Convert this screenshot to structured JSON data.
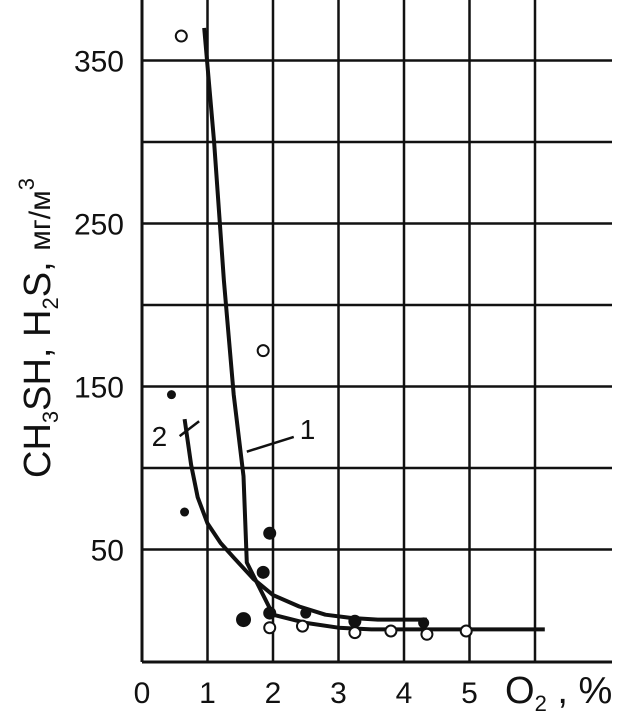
{
  "chart_data": {
    "type": "line",
    "xlabel": {
      "main": "O",
      "sub": "2",
      "rest": " , %"
    },
    "ylabel": {
      "p1": "CH",
      "s1": "3",
      "p2": "SH, H",
      "s2": "2",
      "p3": "S, ",
      "unit": "мг/м",
      "sup": "3"
    },
    "x_ticks": [
      "0",
      "1",
      "2",
      "3",
      "4",
      "5"
    ],
    "y_ticks": [
      {
        "value": 50,
        "label": "50"
      },
      {
        "value": 150,
        "label": "150"
      },
      {
        "value": 250,
        "label": "250"
      },
      {
        "value": 350,
        "label": "350"
      }
    ],
    "xlim": [
      0,
      7.1
    ],
    "ylim": [
      0,
      395
    ],
    "grid_x": [
      1,
      2,
      3,
      4,
      5,
      6
    ],
    "grid_y": [
      50,
      100,
      150,
      200,
      250,
      300,
      350
    ],
    "series": [
      {
        "name": "1",
        "points": [
          [
            0.95,
            370
          ],
          [
            1.1,
            300
          ],
          [
            1.25,
            215
          ],
          [
            1.4,
            145
          ],
          [
            1.55,
            95
          ],
          [
            1.6,
            42
          ],
          [
            2.0,
            10
          ],
          [
            2.5,
            5
          ],
          [
            3.0,
            2
          ],
          [
            3.5,
            1
          ],
          [
            4.0,
            1
          ],
          [
            5.0,
            1
          ],
          [
            6.15,
            1
          ]
        ]
      },
      {
        "name": "2",
        "points": [
          [
            0.65,
            130
          ],
          [
            0.75,
            102
          ],
          [
            0.85,
            82
          ],
          [
            1.0,
            66
          ],
          [
            1.2,
            54
          ],
          [
            1.4,
            45
          ],
          [
            1.7,
            32
          ],
          [
            2.0,
            22
          ],
          [
            2.4,
            15
          ],
          [
            2.8,
            10
          ],
          [
            3.2,
            8
          ],
          [
            3.6,
            7
          ],
          [
            4.35,
            7
          ]
        ]
      }
    ],
    "series_labels": [
      {
        "name": "1",
        "text": "1",
        "anchor": [
          1.6,
          110
        ],
        "label_pos": [
          2.5,
          124
        ]
      },
      {
        "name": "2",
        "text": "2",
        "anchor": [
          0.75,
          125
        ],
        "label_pos": [
          0.3,
          122
        ]
      }
    ],
    "points_open": [
      [
        0.6,
        365
      ],
      [
        1.85,
        172
      ],
      [
        1.95,
        2
      ],
      [
        2.45,
        3
      ],
      [
        3.25,
        -1
      ],
      [
        3.8,
        0
      ],
      [
        4.35,
        -2
      ],
      [
        4.95,
        0
      ]
    ],
    "points_filled": [
      {
        "x": 0.45,
        "y": 145,
        "r": 4
      },
      {
        "x": 0.65,
        "y": 73,
        "r": 4
      },
      {
        "x": 1.95,
        "y": 60,
        "r": 6
      },
      {
        "x": 1.85,
        "y": 36,
        "r": 6
      },
      {
        "x": 1.55,
        "y": 7,
        "r": 7
      },
      {
        "x": 1.95,
        "y": 11,
        "r": 6
      },
      {
        "x": 2.5,
        "y": 11,
        "r": 5
      },
      {
        "x": 3.25,
        "y": 6,
        "r": 6
      },
      {
        "x": 4.3,
        "y": 5,
        "r": 5
      }
    ]
  }
}
